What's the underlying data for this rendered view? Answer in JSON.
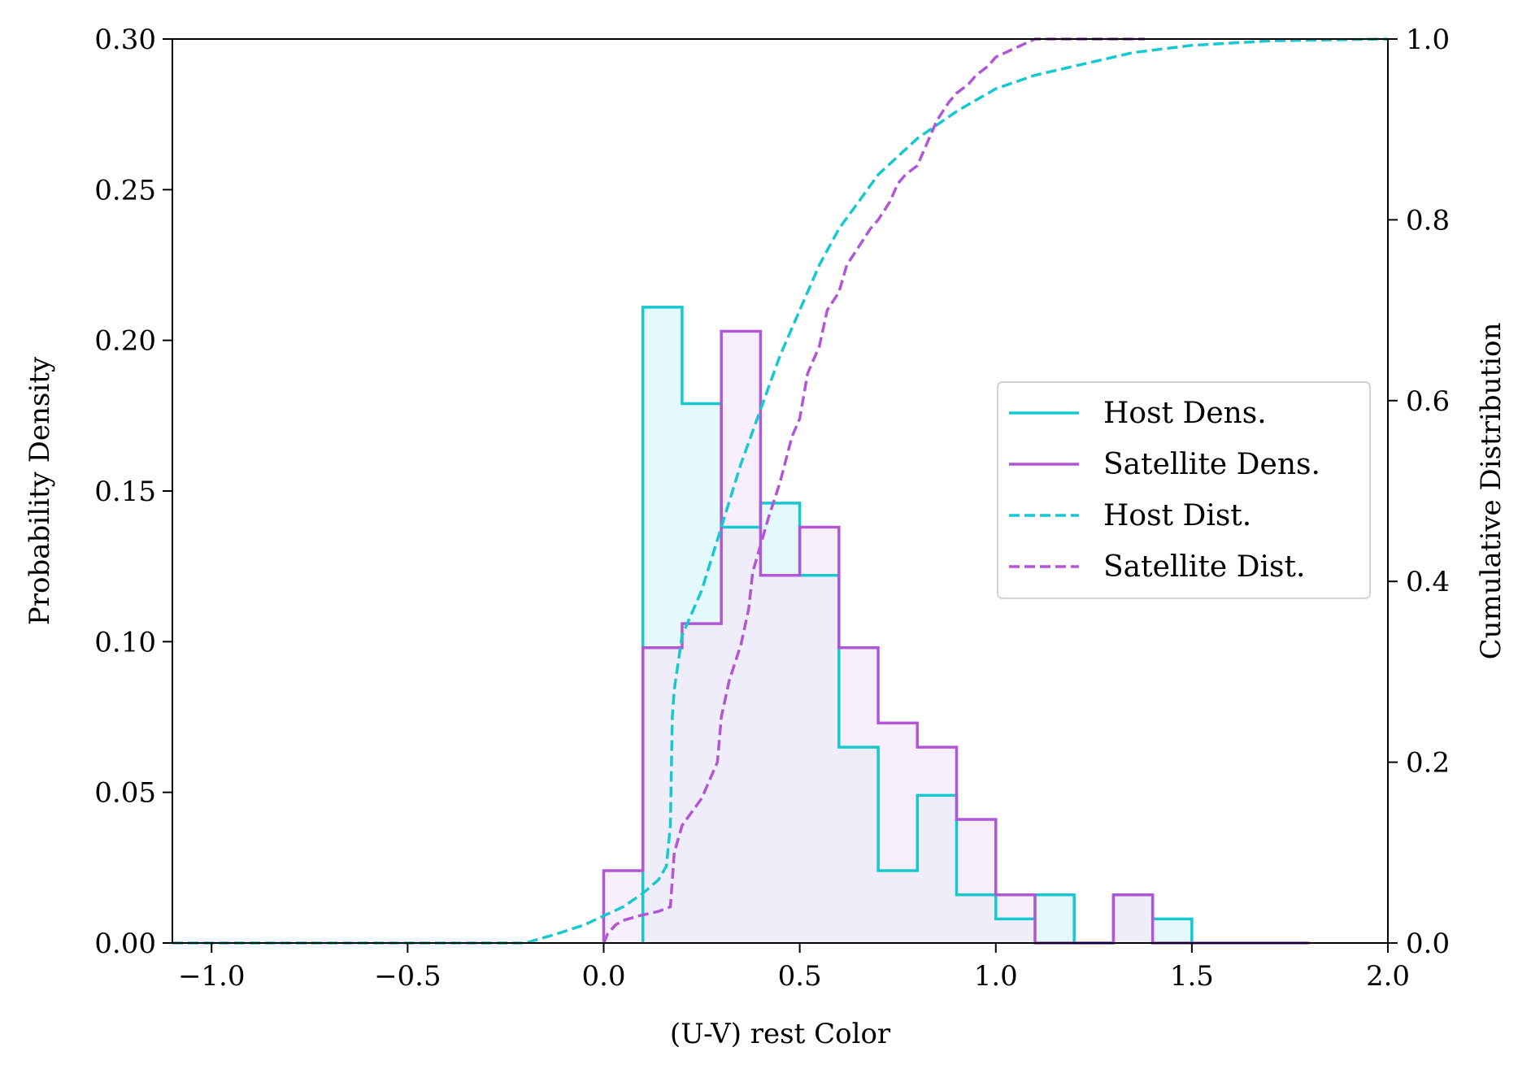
{
  "chart_data": {
    "type": "histogram-cdf",
    "xlabel": "(U-V) rest Color",
    "ylabel_left": "Probability Density",
    "ylabel_right": "Cumulative Distribution",
    "xlim": [
      -1.1,
      2.0
    ],
    "ylim_left": [
      0,
      0.3
    ],
    "ylim_right": [
      0,
      1.0
    ],
    "x_ticks": [
      -1.0,
      -0.5,
      0.0,
      0.5,
      1.0,
      1.5,
      2.0
    ],
    "x_tick_labels": [
      "−1.0",
      "−0.5",
      "0.0",
      "0.5",
      "1.0",
      "1.5",
      "2.0"
    ],
    "y_left_ticks": [
      0,
      0.05,
      0.1,
      0.15,
      0.2,
      0.25,
      0.3
    ],
    "y_left_tick_labels": [
      "0.00",
      "0.05",
      "0.10",
      "0.15",
      "0.20",
      "0.25",
      "0.30"
    ],
    "y_right_ticks": [
      0,
      0.2,
      0.4,
      0.6,
      0.8,
      1.0
    ],
    "y_right_tick_labels": [
      "0.0",
      "0.2",
      "0.4",
      "0.6",
      "0.8",
      "1.0"
    ],
    "grid": false,
    "legend_position": "center-right",
    "legend": [
      {
        "label": "Host Dens.",
        "color": "#17c8d0",
        "style": "solid"
      },
      {
        "label": "Satellite Dens.",
        "color": "#b156d6",
        "style": "solid"
      },
      {
        "label": "Host Dist.",
        "color": "#17c8d0",
        "style": "dashed"
      },
      {
        "label": "Satellite Dist.",
        "color": "#b156d6",
        "style": "dashed"
      }
    ],
    "series": [
      {
        "name": "Host Dens.",
        "kind": "step-histogram",
        "axis": "left",
        "color": "#17c8d0",
        "fill": "#e3f9fb",
        "bin_edges": [
          0.1,
          0.2,
          0.3,
          0.4,
          0.5,
          0.6,
          0.7,
          0.8,
          0.9,
          1.0,
          1.1,
          1.2,
          1.3,
          1.4,
          1.5
        ],
        "values": [
          0.211,
          0.179,
          0.138,
          0.146,
          0.122,
          0.065,
          0.024,
          0.049,
          0.016,
          0.008,
          0.016,
          0.0,
          0.016,
          0.008
        ]
      },
      {
        "name": "Satellite Dens.",
        "kind": "step-histogram",
        "axis": "left",
        "color": "#b156d6",
        "fill": "#f4e8f9",
        "bin_edges": [
          0.0,
          0.1,
          0.2,
          0.3,
          0.4,
          0.5,
          0.6,
          0.7,
          0.8,
          0.9,
          1.0,
          1.1,
          1.2,
          1.3,
          1.4,
          1.5,
          1.6,
          1.7,
          1.8
        ],
        "values": [
          0.024,
          0.098,
          0.106,
          0.203,
          0.122,
          0.138,
          0.098,
          0.073,
          0.065,
          0.041,
          0.016,
          0.0,
          0.0,
          0.016,
          0.0,
          0.0,
          0.0,
          0.0
        ]
      },
      {
        "name": "Host Dist.",
        "kind": "cdf-line",
        "axis": "right",
        "color": "#17c8d0",
        "style": "dashed",
        "x": [
          -1.1,
          -0.2,
          -0.12,
          -0.05,
          0.0,
          0.05,
          0.1,
          0.14,
          0.16,
          0.17,
          0.175,
          0.18,
          0.2,
          0.25,
          0.3,
          0.35,
          0.4,
          0.45,
          0.5,
          0.55,
          0.6,
          0.65,
          0.7,
          0.8,
          0.9,
          1.0,
          1.1,
          1.2,
          1.35,
          1.5,
          1.7,
          2.0
        ],
        "y": [
          0.0,
          0.0,
          0.01,
          0.02,
          0.03,
          0.04,
          0.055,
          0.07,
          0.085,
          0.13,
          0.25,
          0.28,
          0.34,
          0.39,
          0.46,
          0.53,
          0.59,
          0.65,
          0.7,
          0.75,
          0.79,
          0.82,
          0.85,
          0.89,
          0.92,
          0.945,
          0.96,
          0.97,
          0.985,
          0.993,
          0.998,
          1.0
        ]
      },
      {
        "name": "Satellite Dist.",
        "kind": "cdf-line",
        "axis": "right",
        "color": "#b156d6",
        "style": "dashed",
        "x": [
          0.0,
          0.01,
          0.03,
          0.05,
          0.09,
          0.14,
          0.17,
          0.18,
          0.2,
          0.25,
          0.29,
          0.3,
          0.32,
          0.35,
          0.37,
          0.38,
          0.4,
          0.42,
          0.45,
          0.48,
          0.5,
          0.52,
          0.55,
          0.57,
          0.6,
          0.62,
          0.65,
          0.68,
          0.7,
          0.73,
          0.75,
          0.77,
          0.8,
          0.82,
          0.85,
          0.88,
          0.9,
          0.93,
          0.95,
          0.98,
          1.0,
          1.05,
          1.1,
          1.2,
          1.3,
          1.38
        ],
        "y": [
          0.0,
          0.01,
          0.02,
          0.025,
          0.03,
          0.035,
          0.04,
          0.1,
          0.13,
          0.16,
          0.2,
          0.25,
          0.29,
          0.33,
          0.37,
          0.41,
          0.44,
          0.47,
          0.51,
          0.56,
          0.58,
          0.63,
          0.66,
          0.7,
          0.72,
          0.75,
          0.77,
          0.79,
          0.8,
          0.82,
          0.84,
          0.85,
          0.86,
          0.88,
          0.91,
          0.93,
          0.94,
          0.95,
          0.96,
          0.97,
          0.98,
          0.99,
          1.0,
          1.0,
          1.0,
          1.0
        ]
      }
    ]
  }
}
